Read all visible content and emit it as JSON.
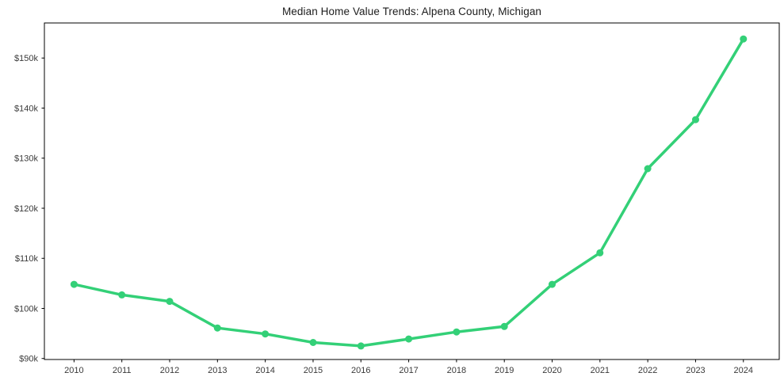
{
  "chart_data": {
    "type": "line",
    "title": "Median Home Value Trends: Alpena County, Michigan",
    "xlabel": "",
    "ylabel": "",
    "x": [
      2010,
      2011,
      2012,
      2013,
      2014,
      2015,
      2016,
      2017,
      2018,
      2019,
      2020,
      2021,
      2022,
      2023,
      2024
    ],
    "values": [
      104800,
      102700,
      101400,
      96100,
      94900,
      93200,
      92500,
      93900,
      95300,
      96400,
      104800,
      111100,
      127900,
      137700,
      153800
    ],
    "series_name": "Median home value",
    "xticks": {
      "values": [
        2010,
        2011,
        2012,
        2013,
        2014,
        2015,
        2016,
        2017,
        2018,
        2019,
        2020,
        2021,
        2022,
        2023,
        2024
      ],
      "labels": [
        "2010",
        "2011",
        "2012",
        "2013",
        "2014",
        "2015",
        "2016",
        "2017",
        "2018",
        "2019",
        "2020",
        "2021",
        "2022",
        "2023",
        "2024"
      ]
    },
    "yticks": {
      "values": [
        90000,
        100000,
        110000,
        120000,
        130000,
        140000,
        150000
      ],
      "labels": [
        "$90k",
        "$100k",
        "$110k",
        "$120k",
        "$130k",
        "$140k",
        "$150k"
      ]
    },
    "xlim": [
      2009.38,
      2024.75
    ],
    "ylim": [
      89800,
      157000
    ],
    "grid": false,
    "legend": null,
    "marker": "circle",
    "colors": {
      "line": "#33d077",
      "marker": "#33d077",
      "spine": "#000000",
      "tick_text": "#3a3a3a",
      "title_text": "#1c1c1c",
      "background": "#ffffff"
    }
  }
}
